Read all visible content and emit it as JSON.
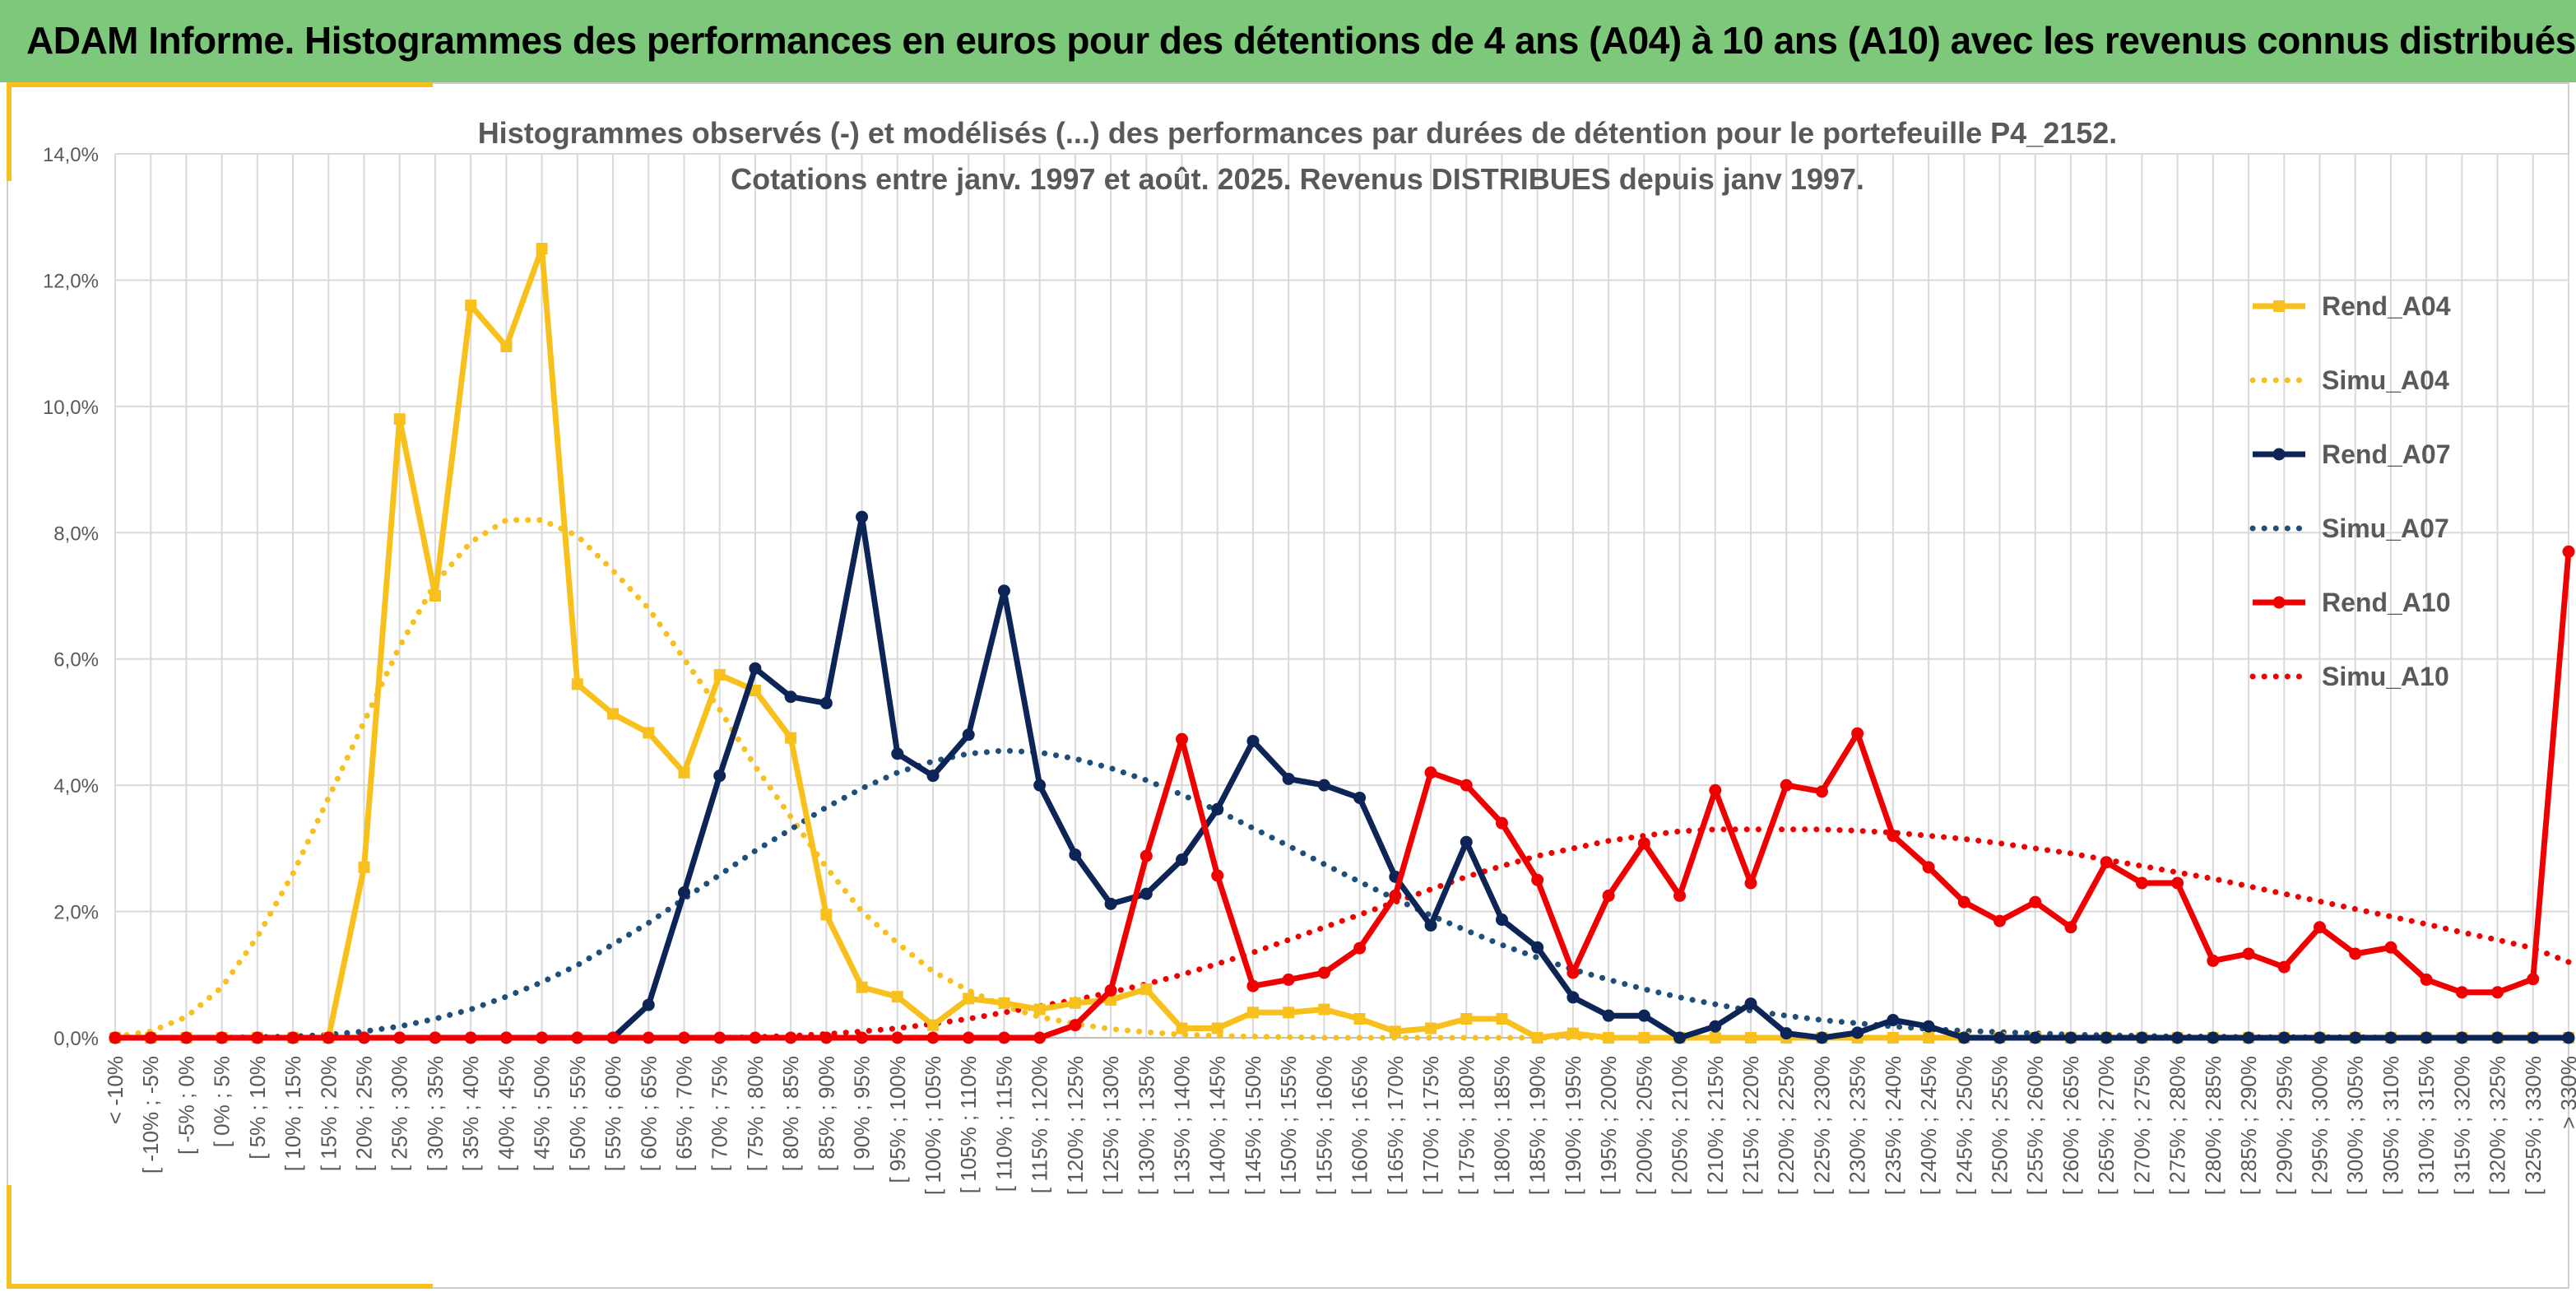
{
  "header": {
    "title": "ADAM Informe. Histogrammes des performances en euros pour des détentions de 4 ans (A04) à 10 ans (A10) avec les revenus connus distribués"
  },
  "colors": {
    "header_bg": "#7dc87a",
    "accent": "#f7c01c",
    "A04": "#f7c01c",
    "A07": "#0c2456",
    "A07_simu": "#1f4e79",
    "A10": "#f00000"
  },
  "chart_data": {
    "type": "line",
    "title_line1": "Histogrammes observés (-) et modélisés (...) des performances par durées de détention pour le portefeuille P4_2152.",
    "title_line2": "Cotations entre janv. 1997 et août. 2025. Revenus DISTRIBUES depuis janv 1997.",
    "ylim": [
      0,
      14
    ],
    "yticks": [
      0,
      2,
      4,
      6,
      8,
      10,
      12,
      14
    ],
    "ytick_labels": [
      "0,0%",
      "2,0%",
      "4,0%",
      "6,0%",
      "8,0%",
      "10,0%",
      "12,0%",
      "14,0%"
    ],
    "grid": true,
    "legend_position": "right",
    "categories": [
      "< -10%",
      "[ -10% ; -5%",
      "[ -5% ; 0%",
      "[ 0% ; 5%",
      "[ 5% ; 10%",
      "[ 10% ; 15%",
      "[ 15% ; 20%",
      "[ 20% ; 25%",
      "[ 25% ; 30%",
      "[ 30% ; 35%",
      "[ 35% ; 40%",
      "[ 40% ; 45%",
      "[ 45% ; 50%",
      "[ 50% ; 55%",
      "[ 55% ; 60%",
      "[ 60% ; 65%",
      "[ 65% ; 70%",
      "[ 70% ; 75%",
      "[ 75% ; 80%",
      "[ 80% ; 85%",
      "[ 85% ; 90%",
      "[ 90% ; 95%",
      "[ 95% ; 100%",
      "[ 100% ; 105%",
      "[ 105% ; 110%",
      "[ 110% ; 115%",
      "[ 115% ; 120%",
      "[ 120% ; 125%",
      "[ 125% ; 130%",
      "[ 130% ; 135%",
      "[ 135% ; 140%",
      "[ 140% ; 145%",
      "[ 145% ; 150%",
      "[ 150% ; 155%",
      "[ 155% ; 160%",
      "[ 160% ; 165%",
      "[ 165% ; 170%",
      "[ 170% ; 175%",
      "[ 175% ; 180%",
      "[ 180% ; 185%",
      "[ 185% ; 190%",
      "[ 190% ; 195%",
      "[ 195% ; 200%",
      "[ 200% ; 205%",
      "[ 205% ; 210%",
      "[ 210% ; 215%",
      "[ 215% ; 220%",
      "[ 220% ; 225%",
      "[ 225% ; 230%",
      "[ 230% ; 235%",
      "[ 235% ; 240%",
      "[ 240% ; 245%",
      "[ 245% ; 250%",
      "[ 250% ; 255%",
      "[ 255% ; 260%",
      "[ 260% ; 265%",
      "[ 265% ; 270%",
      "[ 270% ; 275%",
      "[ 275% ; 280%",
      "[ 280% ; 285%",
      "[ 285% ; 290%",
      "[ 290% ; 295%",
      "[ 295% ; 300%",
      "[ 300% ; 305%",
      "[ 305% ; 310%",
      "[ 310% ; 315%",
      "[ 315% ; 320%",
      "[ 320% ; 325%",
      "[ 325% ; 330%",
      "> 330%"
    ],
    "series": [
      {
        "name": "Rend_A04",
        "style": "solid",
        "marker": "square",
        "color": "#f7c01c",
        "values": [
          0,
          0,
          0,
          0,
          0,
          0,
          0,
          2.7,
          9.8,
          7.0,
          11.6,
          10.95,
          12.5,
          5.6,
          5.13,
          4.83,
          4.2,
          5.75,
          5.5,
          4.75,
          1.95,
          0.8,
          0.65,
          0.2,
          0.62,
          0.55,
          0.45,
          0.55,
          0.6,
          0.77,
          0.15,
          0.15,
          0.4,
          0.4,
          0.45,
          0.3,
          0.1,
          0.15,
          0.3,
          0.3,
          0,
          0.07,
          0,
          0,
          0,
          0,
          0,
          0,
          0,
          0,
          0,
          0,
          0,
          0,
          0,
          0,
          0,
          0,
          0,
          0,
          0,
          0,
          0,
          0,
          0,
          0,
          0,
          0,
          0,
          0
        ]
      },
      {
        "name": "Simu_A04",
        "style": "dotted",
        "color": "#f7c01c",
        "values": [
          0.02,
          0.1,
          0.33,
          0.8,
          1.6,
          2.6,
          3.8,
          5.0,
          6.2,
          7.2,
          7.85,
          8.2,
          8.2,
          7.95,
          7.4,
          6.8,
          6.0,
          5.2,
          4.3,
          3.5,
          2.7,
          2.0,
          1.5,
          1.05,
          0.75,
          0.5,
          0.33,
          0.22,
          0.14,
          0.09,
          0.05,
          0.03,
          0.02,
          0.01,
          0,
          0,
          0,
          0,
          0,
          0,
          0,
          0,
          0,
          0,
          0,
          0,
          0,
          0,
          0,
          0,
          0,
          0,
          0,
          0,
          0,
          0,
          0,
          0,
          0,
          0,
          0,
          0,
          0,
          0,
          0,
          0,
          0,
          0,
          0,
          0
        ]
      },
      {
        "name": "Rend_A07",
        "style": "solid",
        "marker": "circle",
        "color": "#0c2456",
        "values": [
          0,
          0,
          0,
          0,
          0,
          0,
          0,
          0,
          0,
          0,
          0,
          0,
          0,
          0,
          0,
          0.52,
          2.3,
          4.15,
          5.85,
          5.4,
          5.3,
          8.25,
          4.5,
          4.15,
          4.8,
          7.08,
          4.0,
          2.9,
          2.12,
          2.28,
          2.82,
          3.62,
          4.7,
          4.1,
          4.0,
          3.8,
          2.55,
          1.78,
          3.1,
          1.87,
          1.43,
          0.64,
          0.35,
          0.35,
          0,
          0.18,
          0.54,
          0.07,
          0,
          0.08,
          0.28,
          0.18,
          0,
          0,
          0,
          0,
          0,
          0,
          0,
          0,
          0,
          0,
          0,
          0,
          0,
          0,
          0,
          0,
          0,
          0
        ]
      },
      {
        "name": "Simu_A07",
        "style": "dotted",
        "color": "#1f4e79",
        "values": [
          0,
          0,
          0,
          0,
          0.01,
          0.02,
          0.05,
          0.1,
          0.18,
          0.3,
          0.45,
          0.65,
          0.88,
          1.15,
          1.48,
          1.82,
          2.2,
          2.58,
          2.96,
          3.3,
          3.65,
          3.95,
          4.2,
          4.38,
          4.5,
          4.55,
          4.52,
          4.42,
          4.27,
          4.08,
          3.85,
          3.6,
          3.32,
          3.04,
          2.75,
          2.47,
          2.2,
          1.94,
          1.7,
          1.47,
          1.27,
          1.08,
          0.92,
          0.77,
          0.64,
          0.53,
          0.43,
          0.35,
          0.28,
          0.23,
          0.18,
          0.14,
          0.11,
          0.09,
          0.07,
          0.05,
          0.04,
          0.03,
          0.02,
          0.02,
          0.01,
          0.01,
          0.01,
          0.01,
          0,
          0,
          0,
          0,
          0,
          0
        ]
      },
      {
        "name": "Rend_A10",
        "style": "solid",
        "marker": "circle",
        "color": "#f00000",
        "values": [
          0,
          0,
          0,
          0,
          0,
          0,
          0,
          0,
          0,
          0,
          0,
          0,
          0,
          0,
          0,
          0,
          0,
          0,
          0,
          0,
          0,
          0,
          0,
          0,
          0,
          0,
          0,
          0.2,
          0.75,
          2.88,
          4.73,
          2.57,
          0.82,
          0.92,
          1.03,
          1.42,
          2.25,
          4.2,
          4.0,
          3.4,
          2.5,
          1.03,
          2.25,
          3.08,
          2.25,
          3.92,
          2.45,
          4.0,
          3.9,
          4.82,
          3.2,
          2.7,
          2.15,
          1.85,
          2.15,
          1.75,
          2.78,
          2.45,
          2.45,
          1.22,
          1.33,
          1.12,
          1.75,
          1.33,
          1.43,
          0.92,
          0.72,
          0.72,
          0.93,
          7.7
        ]
      },
      {
        "name": "Simu_A10",
        "style": "dotted",
        "color": "#f00000",
        "values": [
          0,
          0,
          0,
          0,
          0,
          0,
          0,
          0,
          0,
          0,
          0,
          0,
          0,
          0,
          0,
          0,
          0,
          0,
          0.01,
          0.03,
          0.06,
          0.1,
          0.15,
          0.22,
          0.3,
          0.4,
          0.5,
          0.6,
          0.72,
          0.85,
          1.0,
          1.17,
          1.35,
          1.55,
          1.75,
          1.95,
          2.15,
          2.35,
          2.55,
          2.72,
          2.88,
          3.0,
          3.12,
          3.2,
          3.27,
          3.3,
          3.3,
          3.3,
          3.3,
          3.28,
          3.25,
          3.2,
          3.15,
          3.08,
          3.0,
          2.92,
          2.82,
          2.72,
          2.62,
          2.52,
          2.4,
          2.28,
          2.16,
          2.04,
          1.92,
          1.8,
          1.67,
          1.55,
          1.42,
          1.2
        ]
      }
    ]
  }
}
